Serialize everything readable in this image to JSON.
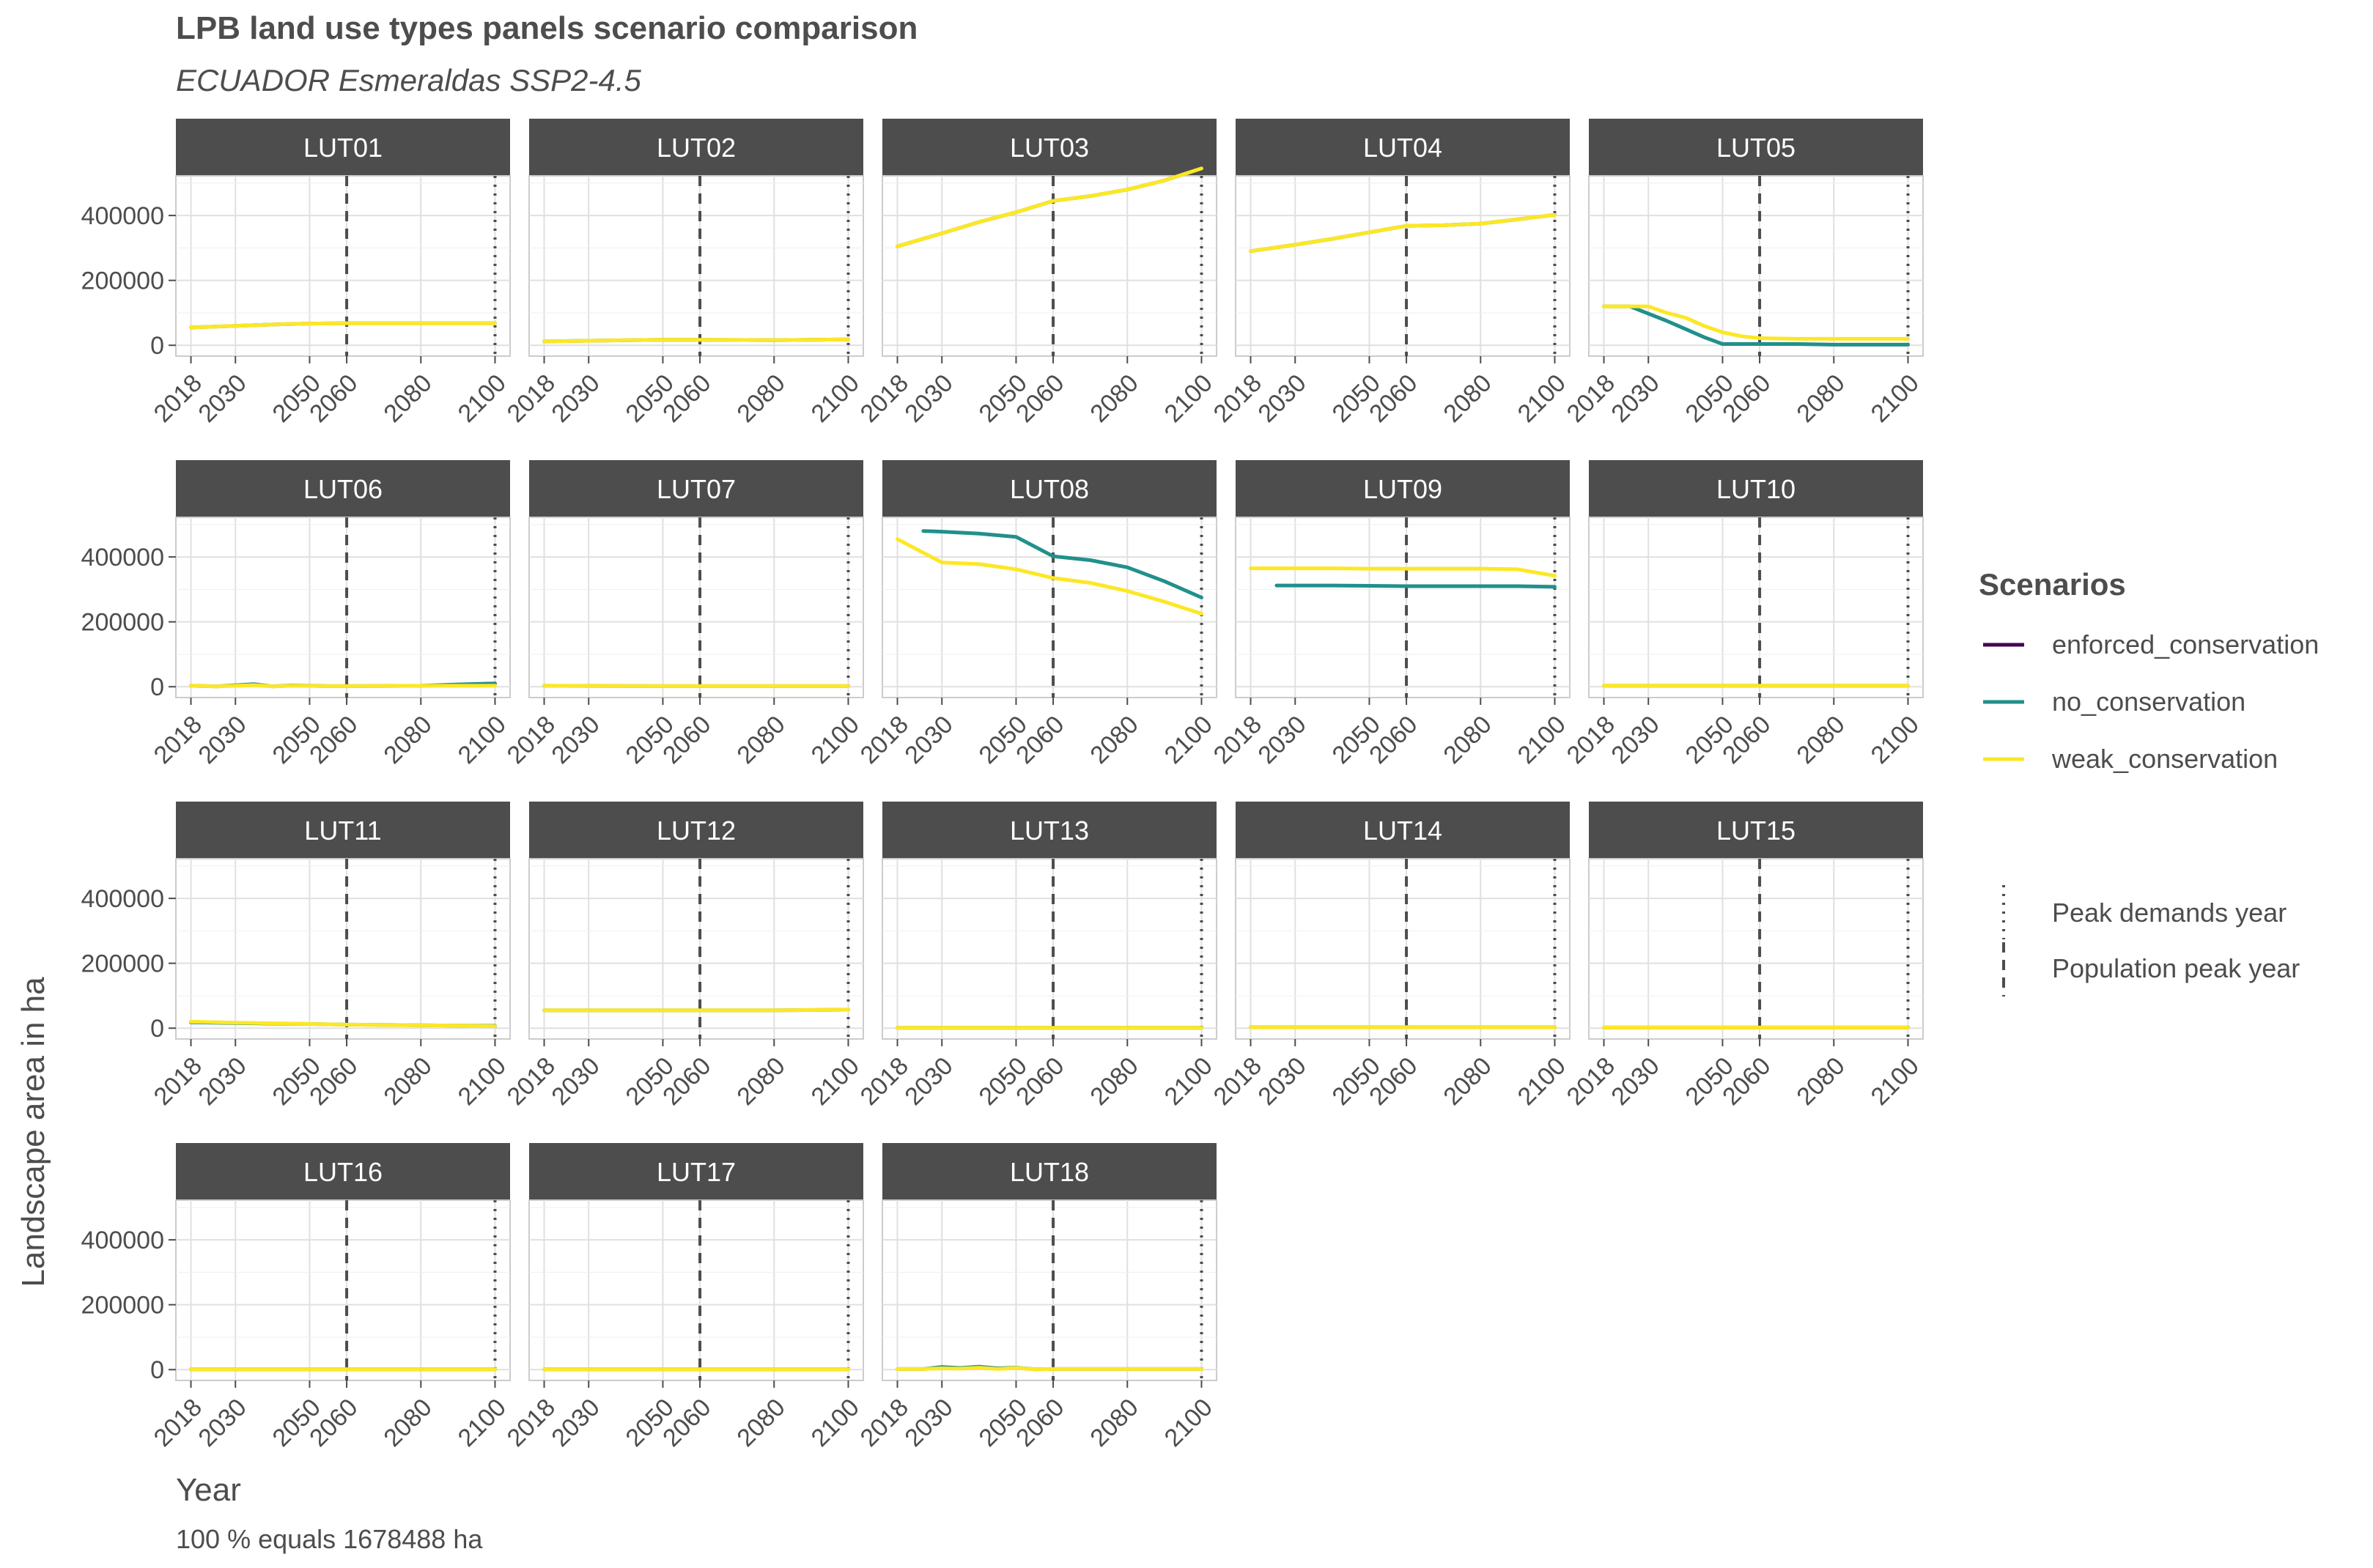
{
  "title": "LPB land use types panels scenario comparison",
  "subtitle": "ECUADOR Esmeraldas SSP2-4.5",
  "caption": "100 % equals 1678488 ha",
  "colors": {
    "enforced_conservation": "#440154",
    "no_conservation": "#21908C",
    "weak_conservation": "#FDE725",
    "strip": "#4d4d4d",
    "grid": "#e0e0e0",
    "text": "#4d4d4d"
  },
  "chart_data": {
    "type": "line",
    "xlabel": "Year",
    "ylabel": "Landscape area in ha",
    "xlim": [
      2018,
      2100
    ],
    "ylim": [
      0,
      500000
    ],
    "x_ticks": [
      2018,
      2030,
      2050,
      2060,
      2080,
      2100
    ],
    "x_tick_labels": [
      "2018",
      "2030",
      "2050",
      "2060",
      "2080",
      "2100"
    ],
    "y_ticks": [
      0,
      200000,
      400000
    ],
    "y_tick_labels": [
      "0",
      "200000",
      "400000"
    ],
    "legend": {
      "title": "Scenarios",
      "entries": [
        "enforced_conservation",
        "no_conservation",
        "weak_conservation"
      ],
      "position": "right"
    },
    "reference_lines": [
      {
        "label": "Peak demands year",
        "x": 2100,
        "style": "dotted"
      },
      {
        "label": "Population peak year",
        "x": 2060,
        "style": "dashed"
      }
    ],
    "panels": [
      {
        "name": "LUT01",
        "series": [
          {
            "name": "no_conservation",
            "x": [
              2018,
              2030,
              2040,
              2050,
              2060,
              2070,
              2080,
              2090,
              2100
            ],
            "values": [
              55000,
              60000,
              64000,
              67000,
              68000,
              68000,
              68000,
              68000,
              68000
            ]
          },
          {
            "name": "weak_conservation",
            "x": [
              2018,
              2030,
              2040,
              2050,
              2060,
              2070,
              2080,
              2090,
              2100
            ],
            "values": [
              55000,
              60000,
              64000,
              67000,
              68000,
              68000,
              68000,
              68000,
              68000
            ]
          }
        ]
      },
      {
        "name": "LUT02",
        "series": [
          {
            "name": "no_conservation",
            "x": [
              2018,
              2030,
              2050,
              2060,
              2080,
              2100
            ],
            "values": [
              12000,
              14000,
              17000,
              17000,
              16000,
              18000
            ]
          },
          {
            "name": "weak_conservation",
            "x": [
              2018,
              2030,
              2050,
              2060,
              2080,
              2100
            ],
            "values": [
              12000,
              14000,
              17000,
              17000,
              16000,
              18000
            ]
          }
        ]
      },
      {
        "name": "LUT03",
        "series": [
          {
            "name": "no_conservation",
            "x": [
              2018,
              2030,
              2040,
              2050,
              2060,
              2070,
              2080,
              2090,
              2100
            ],
            "values": [
              305000,
              345000,
              380000,
              410000,
              445000,
              460000,
              480000,
              508000,
              545000
            ]
          },
          {
            "name": "weak_conservation",
            "x": [
              2018,
              2030,
              2040,
              2050,
              2060,
              2070,
              2080,
              2090,
              2100
            ],
            "values": [
              305000,
              345000,
              380000,
              410000,
              445000,
              460000,
              480000,
              508000,
              545000
            ]
          }
        ]
      },
      {
        "name": "LUT04",
        "series": [
          {
            "name": "no_conservation",
            "x": [
              2018,
              2030,
              2040,
              2050,
              2060,
              2070,
              2080,
              2090,
              2100
            ],
            "values": [
              290000,
              310000,
              328000,
              348000,
              368000,
              370000,
              375000,
              388000,
              402000
            ]
          },
          {
            "name": "weak_conservation",
            "x": [
              2018,
              2030,
              2040,
              2050,
              2060,
              2070,
              2080,
              2090,
              2100
            ],
            "values": [
              290000,
              310000,
              328000,
              348000,
              368000,
              370000,
              375000,
              388000,
              402000
            ]
          }
        ]
      },
      {
        "name": "LUT05",
        "series": [
          {
            "name": "no_conservation",
            "x": [
              2018,
              2025,
              2035,
              2045,
              2050,
              2060,
              2070,
              2080,
              2100
            ],
            "values": [
              120000,
              120000,
              75000,
              25000,
              4000,
              4000,
              4000,
              2000,
              2000
            ]
          },
          {
            "name": "weak_conservation",
            "x": [
              2018,
              2030,
              2035,
              2040,
              2045,
              2050,
              2055,
              2060,
              2070,
              2080,
              2100
            ],
            "values": [
              120000,
              120000,
              100000,
              85000,
              60000,
              40000,
              28000,
              22000,
              20000,
              20000,
              20000
            ]
          }
        ]
      },
      {
        "name": "LUT06",
        "series": [
          {
            "name": "no_conservation",
            "x": [
              2018,
              2025,
              2035,
              2040,
              2045,
              2055,
              2060,
              2080,
              2090,
              2100
            ],
            "values": [
              3000,
              1000,
              8000,
              1000,
              4000,
              2000,
              2000,
              3000,
              7000,
              10000
            ]
          },
          {
            "name": "weak_conservation",
            "x": [
              2018,
              2025,
              2035,
              2040,
              2045,
              2055,
              2060,
              2080,
              2090,
              2100
            ],
            "values": [
              3000,
              1000,
              5000,
              1000,
              3000,
              2000,
              2000,
              3000,
              3000,
              3000
            ]
          }
        ]
      },
      {
        "name": "LUT07",
        "series": [
          {
            "name": "no_conservation",
            "x": [
              2018,
              2030,
              2050,
              2060,
              2080,
              2100
            ],
            "values": [
              3000,
              2500,
              2000,
              2000,
              2000,
              2000
            ]
          },
          {
            "name": "weak_conservation",
            "x": [
              2018,
              2030,
              2050,
              2060,
              2080,
              2100
            ],
            "values": [
              3000,
              2500,
              2000,
              2000,
              2000,
              2000
            ]
          }
        ]
      },
      {
        "name": "LUT08",
        "series": [
          {
            "name": "no_conservation",
            "x": [
              2025,
              2030,
              2040,
              2050,
              2060,
              2070,
              2080,
              2090,
              2100
            ],
            "values": [
              480000,
              478000,
              472000,
              462000,
              402000,
              390000,
              368000,
              325000,
              275000
            ]
          },
          {
            "name": "weak_conservation",
            "x": [
              2018,
              2030,
              2040,
              2050,
              2060,
              2070,
              2080,
              2090,
              2100
            ],
            "values": [
              455000,
              383000,
              378000,
              362000,
              335000,
              320000,
              295000,
              262000,
              225000
            ]
          }
        ]
      },
      {
        "name": "LUT09",
        "series": [
          {
            "name": "no_conservation",
            "x": [
              2025,
              2030,
              2040,
              2050,
              2060,
              2070,
              2080,
              2090,
              2100
            ],
            "values": [
              312000,
              312000,
              312000,
              311000,
              310000,
              310000,
              310000,
              310000,
              308000
            ]
          },
          {
            "name": "weak_conservation",
            "x": [
              2018,
              2030,
              2040,
              2050,
              2060,
              2070,
              2080,
              2090,
              2100
            ],
            "values": [
              365000,
              365000,
              365000,
              364000,
              364000,
              364000,
              364000,
              362000,
              342000
            ]
          }
        ]
      },
      {
        "name": "LUT10",
        "series": [
          {
            "name": "no_conservation",
            "x": [
              2018,
              2030,
              2050,
              2060,
              2080,
              2100
            ],
            "values": [
              3000,
              3000,
              3000,
              3000,
              3000,
              3000
            ]
          },
          {
            "name": "weak_conservation",
            "x": [
              2018,
              2030,
              2050,
              2060,
              2080,
              2100
            ],
            "values": [
              3000,
              3000,
              3000,
              3000,
              3000,
              3000
            ]
          }
        ]
      },
      {
        "name": "LUT11",
        "series": [
          {
            "name": "no_conservation",
            "x": [
              2018,
              2030,
              2040,
              2050,
              2060,
              2070,
              2080,
              2090,
              2100
            ],
            "values": [
              18000,
              16000,
              14000,
              13000,
              11000,
              10000,
              9000,
              8000,
              7000
            ]
          },
          {
            "name": "weak_conservation",
            "x": [
              2018,
              2030,
              2040,
              2050,
              2060,
              2070,
              2080,
              2090,
              2100
            ],
            "values": [
              20000,
              17000,
              15000,
              13000,
              11000,
              10000,
              9000,
              8000,
              6000
            ]
          }
        ]
      },
      {
        "name": "LUT12",
        "series": [
          {
            "name": "no_conservation",
            "x": [
              2018,
              2030,
              2050,
              2060,
              2080,
              2100
            ],
            "values": [
              55000,
              55000,
              55000,
              55000,
              55000,
              57000
            ]
          },
          {
            "name": "weak_conservation",
            "x": [
              2018,
              2030,
              2050,
              2060,
              2080,
              2100
            ],
            "values": [
              55000,
              55000,
              55000,
              55000,
              55000,
              57000
            ]
          }
        ]
      },
      {
        "name": "LUT13",
        "series": [
          {
            "name": "no_conservation",
            "x": [
              2018,
              2030,
              2050,
              2060,
              2080,
              2100
            ],
            "values": [
              1000,
              1000,
              1000,
              1000,
              1000,
              1000
            ]
          },
          {
            "name": "weak_conservation",
            "x": [
              2018,
              2030,
              2050,
              2060,
              2080,
              2100
            ],
            "values": [
              1000,
              1000,
              1000,
              1000,
              1000,
              1000
            ]
          }
        ]
      },
      {
        "name": "LUT14",
        "series": [
          {
            "name": "no_conservation",
            "x": [
              2018,
              2030,
              2050,
              2060,
              2080,
              2100
            ],
            "values": [
              3000,
              3000,
              3000,
              3000,
              3000,
              3000
            ]
          },
          {
            "name": "weak_conservation",
            "x": [
              2018,
              2030,
              2050,
              2060,
              2080,
              2100
            ],
            "values": [
              3000,
              3000,
              3000,
              3000,
              3000,
              3000
            ]
          }
        ]
      },
      {
        "name": "LUT15",
        "series": [
          {
            "name": "no_conservation",
            "x": [
              2018,
              2030,
              2050,
              2060,
              2080,
              2100
            ],
            "values": [
              2000,
              2000,
              2000,
              2000,
              2000,
              2000
            ]
          },
          {
            "name": "weak_conservation",
            "x": [
              2018,
              2030,
              2050,
              2060,
              2080,
              2100
            ],
            "values": [
              2000,
              2000,
              2000,
              2000,
              2000,
              2000
            ]
          }
        ]
      },
      {
        "name": "LUT16",
        "series": [
          {
            "name": "no_conservation",
            "x": [
              2018,
              2030,
              2050,
              2060,
              2080,
              2100
            ],
            "values": [
              1000,
              1000,
              1000,
              1000,
              1000,
              1000
            ]
          },
          {
            "name": "weak_conservation",
            "x": [
              2018,
              2030,
              2050,
              2060,
              2080,
              2100
            ],
            "values": [
              1000,
              1000,
              1000,
              1000,
              1000,
              1000
            ]
          }
        ]
      },
      {
        "name": "LUT17",
        "series": [
          {
            "name": "no_conservation",
            "x": [
              2018,
              2030,
              2050,
              2060,
              2080,
              2100
            ],
            "values": [
              1000,
              1000,
              1000,
              1000,
              1000,
              1000
            ]
          },
          {
            "name": "weak_conservation",
            "x": [
              2018,
              2030,
              2050,
              2060,
              2080,
              2100
            ],
            "values": [
              1000,
              1000,
              1000,
              1000,
              1000,
              1000
            ]
          }
        ]
      },
      {
        "name": "LUT18",
        "series": [
          {
            "name": "no_conservation",
            "x": [
              2018,
              2025,
              2030,
              2035,
              2040,
              2045,
              2050,
              2055,
              2060,
              2080,
              2100
            ],
            "values": [
              2000,
              2000,
              8000,
              5000,
              9000,
              4000,
              6000,
              1000,
              2000,
              2000,
              2000
            ]
          },
          {
            "name": "weak_conservation",
            "x": [
              2018,
              2025,
              2030,
              2035,
              2040,
              2045,
              2050,
              2055,
              2060,
              2080,
              2100
            ],
            "values": [
              2000,
              2000,
              4000,
              3000,
              6000,
              2000,
              5000,
              1000,
              2000,
              2000,
              2000
            ]
          }
        ]
      }
    ]
  }
}
